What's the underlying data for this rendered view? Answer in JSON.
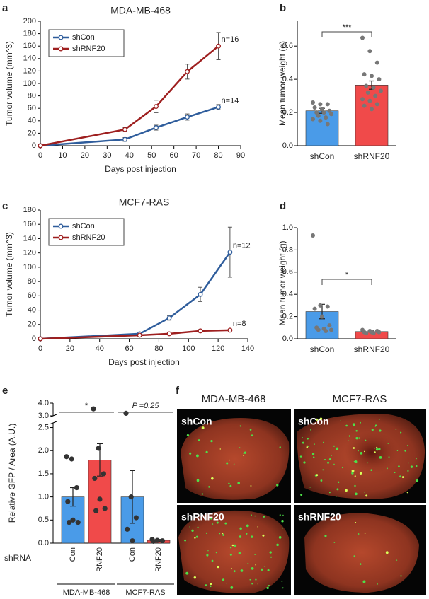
{
  "chart_data": [
    {
      "type": "line",
      "label": "a",
      "title": "MDA-MB-468",
      "xlabel": "Days post injection",
      "ylabel": "Tumor volume (mm^3)",
      "x": [
        0,
        38,
        52,
        66,
        80
      ],
      "series": [
        {
          "name": "shCon",
          "color": "#2f5d9c",
          "values": [
            0,
            10,
            29,
            46,
            62
          ],
          "errors": [
            0,
            3,
            4,
            5,
            4
          ],
          "n_label": "n=14"
        },
        {
          "name": "shRNF20",
          "color": "#9e1f1f",
          "values": [
            0,
            26,
            63,
            119,
            160
          ],
          "errors": [
            0,
            3,
            10,
            12,
            22
          ],
          "n_label": "n=16"
        }
      ],
      "xlim": [
        0,
        90
      ],
      "xticks": [
        0,
        10,
        20,
        30,
        40,
        50,
        60,
        70,
        80,
        90
      ],
      "ylim": [
        0,
        200
      ],
      "yticks": [
        0,
        20,
        40,
        60,
        80,
        100,
        120,
        140,
        160,
        180,
        200
      ],
      "legend": "upper left"
    },
    {
      "type": "bar",
      "label": "b",
      "ylabel": "Mean tumor weight (g)",
      "categories": [
        "shCon",
        "shRNF20"
      ],
      "values": [
        0.21,
        0.365
      ],
      "errors": [
        0.015,
        0.025
      ],
      "colors": [
        "#4a9be8",
        "#f04a4a"
      ],
      "points": [
        [
          0.26,
          0.25,
          0.25,
          0.23,
          0.22,
          0.21,
          0.2,
          0.2,
          0.19,
          0.18,
          0.17,
          0.16,
          0.15,
          0.13
        ],
        [
          0.65,
          0.57,
          0.5,
          0.43,
          0.42,
          0.4,
          0.36,
          0.35,
          0.33,
          0.32,
          0.3,
          0.28,
          0.27,
          0.25,
          0.24,
          0.22
        ]
      ],
      "ylim": [
        0,
        0.75
      ],
      "yticks": [
        {
          "value": 0,
          "label": "0.0"
        },
        0.2,
        0.4,
        0.6
      ],
      "significance": "***"
    },
    {
      "type": "line",
      "label": "c",
      "title": "MCF7-RAS",
      "xlabel": "Days post injection",
      "ylabel": "Tumor volume (mm^3)",
      "x": [
        0,
        67,
        87,
        108,
        128
      ],
      "series": [
        {
          "name": "shCon",
          "color": "#2f5d9c",
          "values": [
            0,
            7,
            29,
            62,
            121
          ],
          "errors": [
            0,
            1,
            3,
            10,
            35
          ],
          "n_label": "n=12"
        },
        {
          "name": "shRNF20",
          "color": "#9e1f1f",
          "values": [
            0,
            5,
            7,
            11,
            12
          ],
          "errors": [
            0,
            1,
            1,
            2,
            1
          ],
          "n_label": "n=8"
        }
      ],
      "xlim": [
        0,
        140
      ],
      "xticks": [
        0,
        20,
        40,
        60,
        80,
        100,
        120,
        140
      ],
      "ylim": [
        0,
        180
      ],
      "yticks": [
        0,
        20,
        40,
        60,
        80,
        100,
        120,
        140,
        160,
        180
      ],
      "legend": "upper left"
    },
    {
      "type": "bar",
      "label": "d",
      "ylabel": "Mean tumor weight (g)",
      "categories": [
        "shCon",
        "shRNF20"
      ],
      "values": [
        0.245,
        0.065
      ],
      "errors": [
        0.065,
        0.006
      ],
      "colors": [
        "#4a9be8",
        "#f04a4a"
      ],
      "points": [
        [
          0.93,
          0.3,
          0.29,
          0.27,
          0.2,
          0.12,
          0.1,
          0.09,
          0.08,
          0.08,
          0.07
        ],
        [
          0.08,
          0.07,
          0.07,
          0.06,
          0.06,
          0.06,
          0.05,
          0.05
        ]
      ],
      "ylim": [
        0,
        1.0
      ],
      "yticks": [
        {
          "value": 0,
          "label": "0.0"
        },
        0.2,
        0.4,
        0.6,
        0.8,
        {
          "value": 1,
          "label": "1.0"
        }
      ],
      "significance": "*"
    },
    {
      "type": "bar",
      "label": "e",
      "ylabel": "Relative GFP / Area (A.U.)",
      "x_title": "shRNA",
      "categories": [
        "Con",
        "RNF20",
        "Con",
        "RNF20"
      ],
      "values": [
        1.0,
        1.8,
        1.0,
        0.06
      ],
      "errors": [
        0.2,
        0.35,
        0.57,
        0.02
      ],
      "colors": [
        "#4a9be8",
        "#f04a4a",
        "#4a9be8",
        "#f04a4a"
      ],
      "points": [
        [
          1.87,
          1.82,
          1.2,
          0.9,
          0.5,
          0.45,
          0.45
        ],
        [
          3.55,
          2.05,
          1.5,
          1.4,
          0.95,
          0.75,
          0.7
        ],
        [
          3.2,
          1.0,
          0.55,
          0.3,
          0.05
        ],
        [
          0.08,
          0.06,
          0.05,
          0.04
        ]
      ],
      "groups": [
        {
          "name": "MDA-MB-468",
          "significance": "*"
        },
        {
          "name": "MCF7-RAS",
          "significance": "P =0.25"
        }
      ],
      "ylim": [
        0,
        4.0
      ],
      "ybreak": [
        2.6,
        3.0
      ],
      "yticks": [
        {
          "value": 0,
          "label": "0.0"
        },
        0.5,
        {
          "value": 1,
          "label": "1.0"
        },
        1.5,
        {
          "value": 2,
          "label": "2.0"
        },
        2.5,
        {
          "value": 3,
          "label": "3.0"
        },
        {
          "value": 4,
          "label": "4.0"
        }
      ]
    }
  ],
  "images": {
    "label": "f",
    "columns": [
      "MDA-MB-468",
      "MCF7-RAS"
    ],
    "rows": [
      [
        "shCon",
        "shCon"
      ],
      [
        "shRNF20",
        "shRNF20"
      ]
    ]
  }
}
